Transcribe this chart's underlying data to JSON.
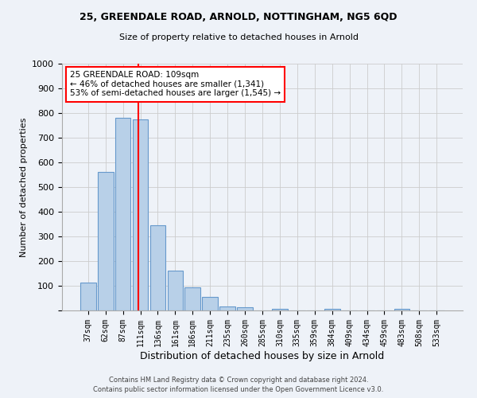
{
  "title1": "25, GREENDALE ROAD, ARNOLD, NOTTINGHAM, NG5 6QD",
  "title2": "Size of property relative to detached houses in Arnold",
  "xlabel": "Distribution of detached houses by size in Arnold",
  "ylabel": "Number of detached properties",
  "bar_labels": [
    "37sqm",
    "62sqm",
    "87sqm",
    "111sqm",
    "136sqm",
    "161sqm",
    "186sqm",
    "211sqm",
    "235sqm",
    "260sqm",
    "285sqm",
    "310sqm",
    "335sqm",
    "359sqm",
    "384sqm",
    "409sqm",
    "434sqm",
    "459sqm",
    "483sqm",
    "508sqm",
    "533sqm"
  ],
  "bar_values": [
    112,
    560,
    780,
    775,
    345,
    160,
    95,
    55,
    15,
    13,
    0,
    8,
    0,
    0,
    8,
    0,
    0,
    0,
    8,
    0,
    0
  ],
  "bar_color": "#b8d0e8",
  "bar_edge_color": "#6699cc",
  "annotation_text": "25 GREENDALE ROAD: 109sqm\n← 46% of detached houses are smaller (1,341)\n53% of semi-detached houses are larger (1,545) →",
  "annotation_box_color": "white",
  "annotation_box_edge_color": "red",
  "vline_color": "red",
  "ylim": [
    0,
    1000
  ],
  "yticks": [
    0,
    100,
    200,
    300,
    400,
    500,
    600,
    700,
    800,
    900,
    1000
  ],
  "grid_color": "#cccccc",
  "footer_text1": "Contains HM Land Registry data © Crown copyright and database right 2024.",
  "footer_text2": "Contains public sector information licensed under the Open Government Licence v3.0.",
  "bg_color": "#eef2f8"
}
